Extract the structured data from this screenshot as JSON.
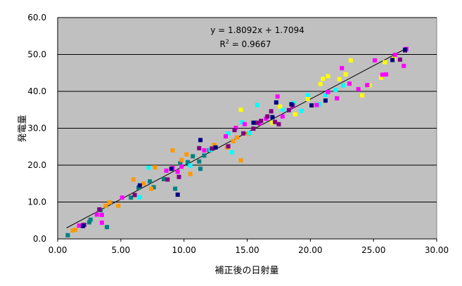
{
  "chart_data": {
    "type": "scatter",
    "xlabel": "補正後の日射量",
    "ylabel": "発電量",
    "xlim": [
      0,
      30
    ],
    "ylim": [
      0,
      60
    ],
    "x_ticks": [
      "0.00",
      "5.00",
      "10.00",
      "15.00",
      "20.00",
      "25.00",
      "30.00"
    ],
    "y_ticks": [
      "0.0",
      "10.0",
      "20.0",
      "30.0",
      "40.0",
      "50.0",
      "60.0"
    ],
    "grid": "horizontal",
    "plot_background": "#c0c0c0",
    "trendline": {
      "type": "linear",
      "slope": 1.8092,
      "intercept": 1.7094,
      "x_range": [
        0.7,
        27.6
      ],
      "color": "#000000",
      "equation_text": "y = 1.8092x + 1.7094",
      "r2_prefix": "R",
      "r2_exp": "2",
      "r2_suffix": " = 0.9667"
    },
    "series": [
      {
        "color": "#008080",
        "points": [
          [
            0.8,
            1.0
          ],
          [
            2.5,
            4.5
          ],
          [
            2.6,
            5.2
          ],
          [
            3.4,
            7.8
          ],
          [
            3.9,
            3.2
          ],
          [
            5.8,
            11.2
          ],
          [
            6.4,
            13.9
          ],
          [
            7.3,
            15.6
          ],
          [
            7.6,
            14.0
          ],
          [
            8.4,
            16.2
          ],
          [
            9.3,
            13.6
          ],
          [
            9.7,
            20.5
          ],
          [
            10.3,
            20.8
          ],
          [
            10.7,
            22.4
          ],
          [
            11.2,
            21.0
          ],
          [
            11.3,
            19.0
          ],
          [
            11.6,
            22.6
          ],
          [
            12.0,
            24.0
          ]
        ]
      },
      {
        "color": "#ff9900",
        "points": [
          [
            1.2,
            2.3
          ],
          [
            1.4,
            2.5
          ],
          [
            3.8,
            9.0
          ],
          [
            4.1,
            9.9
          ],
          [
            4.8,
            9.0
          ],
          [
            6.0,
            16.1
          ],
          [
            6.8,
            15.0
          ],
          [
            7.4,
            13.6
          ],
          [
            7.7,
            19.4
          ],
          [
            9.1,
            24.0
          ],
          [
            9.8,
            21.4
          ],
          [
            10.2,
            22.9
          ],
          [
            10.5,
            17.6
          ],
          [
            12.4,
            25.5
          ],
          [
            13.4,
            24.8
          ],
          [
            13.9,
            26.5
          ],
          [
            14.2,
            27.5
          ],
          [
            14.5,
            21.3
          ],
          [
            15.1,
            28.5
          ]
        ]
      },
      {
        "color": "#00ffff",
        "points": [
          [
            6.5,
            11.3
          ],
          [
            7.2,
            19.3
          ],
          [
            10.5,
            19.9
          ],
          [
            12.1,
            24.2
          ],
          [
            13.5,
            28.6
          ],
          [
            13.8,
            23.5
          ],
          [
            14.6,
            31.6
          ],
          [
            15.2,
            28.7
          ],
          [
            15.8,
            36.3
          ],
          [
            17.8,
            35.0
          ],
          [
            18.7,
            36.8
          ],
          [
            19.3,
            34.7
          ],
          [
            19.8,
            38.9
          ],
          [
            20.7,
            36.5
          ],
          [
            21.2,
            39.0
          ],
          [
            22.0,
            40.4
          ],
          [
            22.6,
            41.6
          ]
        ]
      },
      {
        "color": "#ffff00",
        "points": [
          [
            14.5,
            35.0
          ],
          [
            17.0,
            31.5
          ],
          [
            17.6,
            35.9
          ],
          [
            18.8,
            33.8
          ],
          [
            19.8,
            37.9
          ],
          [
            20.8,
            42.0
          ],
          [
            21.0,
            43.4
          ],
          [
            21.4,
            44.1
          ],
          [
            22.3,
            43.3
          ],
          [
            22.8,
            44.6
          ],
          [
            23.2,
            48.4
          ],
          [
            24.1,
            38.9
          ],
          [
            24.7,
            41.6
          ],
          [
            25.6,
            43.7
          ],
          [
            25.9,
            47.9
          ],
          [
            26.6,
            48.9
          ]
        ]
      },
      {
        "color": "#ff00ff",
        "points": [
          [
            1.7,
            3.6
          ],
          [
            2.0,
            3.8
          ],
          [
            3.1,
            6.6
          ],
          [
            3.5,
            4.4
          ],
          [
            3.5,
            6.5
          ],
          [
            5.1,
            11.2
          ],
          [
            8.6,
            18.5
          ],
          [
            9.1,
            19.2
          ],
          [
            9.5,
            18.2
          ],
          [
            9.8,
            19.6
          ],
          [
            11.6,
            24.0
          ],
          [
            13.3,
            27.8
          ],
          [
            14.1,
            30.1
          ],
          [
            14.8,
            31.1
          ],
          [
            16.0,
            31.3
          ],
          [
            16.5,
            32.6
          ],
          [
            17.4,
            38.6
          ],
          [
            17.8,
            33.2
          ],
          [
            18.6,
            36.0
          ],
          [
            20.5,
            36.3
          ],
          [
            21.4,
            39.8
          ],
          [
            22.1,
            38.1
          ],
          [
            22.5,
            46.3
          ],
          [
            23.1,
            42.1
          ],
          [
            23.8,
            40.6
          ],
          [
            24.5,
            41.7
          ],
          [
            25.1,
            48.4
          ],
          [
            25.7,
            44.5
          ],
          [
            26.0,
            44.6
          ],
          [
            26.7,
            49.9
          ],
          [
            27.4,
            46.9
          ],
          [
            27.6,
            51.5
          ]
        ]
      },
      {
        "color": "#800080",
        "points": [
          [
            2.1,
            3.8
          ],
          [
            3.3,
            8.0
          ],
          [
            6.1,
            11.9
          ],
          [
            8.7,
            16.1
          ],
          [
            9.6,
            16.8
          ],
          [
            11.2,
            24.6
          ],
          [
            12.2,
            24.5
          ],
          [
            13.5,
            25.1
          ],
          [
            14.0,
            29.5
          ],
          [
            14.7,
            28.6
          ],
          [
            15.5,
            29.9
          ],
          [
            15.8,
            31.5
          ],
          [
            16.1,
            32.0
          ],
          [
            16.6,
            33.2
          ],
          [
            16.9,
            34.6
          ],
          [
            17.2,
            31.7
          ],
          [
            17.5,
            31.1
          ],
          [
            18.3,
            34.9
          ],
          [
            18.6,
            36.2
          ],
          [
            27.1,
            48.6
          ],
          [
            27.5,
            51.1
          ]
        ]
      },
      {
        "color": "#000080",
        "points": [
          [
            2.0,
            3.5
          ],
          [
            6.5,
            14.5
          ],
          [
            9.0,
            19.0
          ],
          [
            9.5,
            12.0
          ],
          [
            11.3,
            26.8
          ],
          [
            12.5,
            24.8
          ],
          [
            15.5,
            31.5
          ],
          [
            17.0,
            33.0
          ],
          [
            17.3,
            37.0
          ],
          [
            18.5,
            36.5
          ],
          [
            20.1,
            36.2
          ],
          [
            21.2,
            37.5
          ],
          [
            26.5,
            48.5
          ],
          [
            27.5,
            51.3
          ]
        ]
      }
    ]
  }
}
